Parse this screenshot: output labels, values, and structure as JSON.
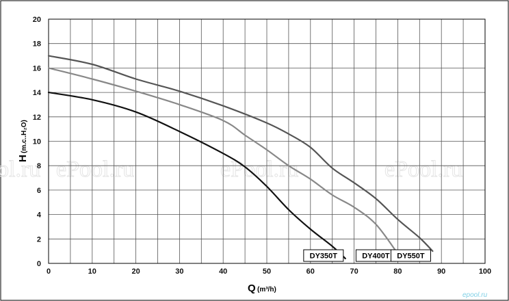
{
  "chart_data": {
    "type": "line",
    "title": "",
    "xlabel": "Q",
    "xlabel_unit": "(m³/h)",
    "ylabel": "H",
    "ylabel_unit": "(m.c..H₂O)",
    "xlim": [
      0,
      100
    ],
    "ylim": [
      0,
      20
    ],
    "x_ticks": [
      "0",
      "10",
      "20",
      "30",
      "40",
      "50",
      "60",
      "70",
      "80",
      "90",
      "100"
    ],
    "y_ticks": [
      "0",
      "2",
      "4",
      "6",
      "8",
      "10",
      "12",
      "14",
      "16",
      "18",
      "20"
    ],
    "x_grid_step": 5,
    "y_grid_step": 2,
    "grid": true,
    "legend": "labels at curve ends, bottom-right",
    "series": [
      {
        "name": "DY350T",
        "color": "#111111",
        "points": [
          [
            0,
            14
          ],
          [
            10,
            13.4
          ],
          [
            20,
            12.4
          ],
          [
            30,
            10.8
          ],
          [
            40,
            9.0
          ],
          [
            45,
            7.9
          ],
          [
            50,
            6.3
          ],
          [
            55,
            4.4
          ],
          [
            60,
            2.8
          ],
          [
            65,
            1.4
          ],
          [
            68,
            0.4
          ]
        ]
      },
      {
        "name": "DY400T",
        "color": "#888888",
        "points": [
          [
            0,
            16
          ],
          [
            10,
            15.1
          ],
          [
            20,
            14.1
          ],
          [
            30,
            13.0
          ],
          [
            40,
            11.7
          ],
          [
            45,
            10.5
          ],
          [
            50,
            9.3
          ],
          [
            55,
            8.0
          ],
          [
            60,
            6.9
          ],
          [
            65,
            5.6
          ],
          [
            70,
            4.6
          ],
          [
            75,
            3.2
          ],
          [
            80,
            0.8
          ]
        ]
      },
      {
        "name": "DY550T",
        "color": "#555555",
        "points": [
          [
            0,
            17
          ],
          [
            10,
            16.3
          ],
          [
            20,
            15.1
          ],
          [
            30,
            14.1
          ],
          [
            40,
            12.9
          ],
          [
            50,
            11.5
          ],
          [
            55,
            10.6
          ],
          [
            60,
            9.5
          ],
          [
            65,
            7.8
          ],
          [
            70,
            6.6
          ],
          [
            75,
            5.3
          ],
          [
            80,
            3.6
          ],
          [
            85,
            2.1
          ],
          [
            88,
            1.0
          ]
        ]
      }
    ]
  },
  "watermark": {
    "text": "ePool.ru",
    "color": "#e4e4e4"
  },
  "corner_logo": {
    "text": "epool.ru",
    "color": "#7fd0e6"
  }
}
